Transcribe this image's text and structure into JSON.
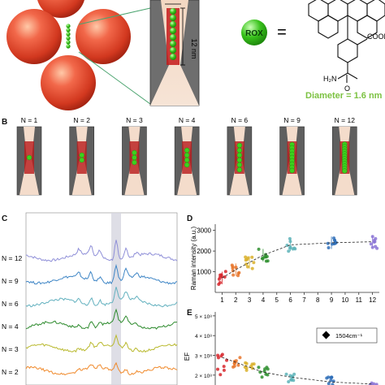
{
  "panel_a": {
    "gap_dim_label": "12 nm",
    "rox_label": "ROX",
    "equals": "=",
    "cooh_label": "COOH",
    "h2n_label": "H₂N",
    "carbonyl_o_label": "O",
    "diameter_label": "Diameter = 1.6 nm",
    "colors": {
      "sphere": "#e84a2a",
      "dye": "#39c21c",
      "diameter_text": "#7cc242"
    }
  },
  "panel_b": {
    "letter": "B",
    "items": [
      {
        "label": "N = 1",
        "n": 1
      },
      {
        "label": "N = 2",
        "n": 2
      },
      {
        "label": "N = 3",
        "n": 3
      },
      {
        "label": "N = 4",
        "n": 4
      },
      {
        "label": "N = 6",
        "n": 6
      },
      {
        "label": "N = 9",
        "n": 9
      },
      {
        "label": "N = 12",
        "n": 12
      }
    ]
  },
  "panel_c": {
    "letter": "C",
    "rows": [
      {
        "label": "N = 12",
        "color": "#8f8fd8"
      },
      {
        "label": "N = 9",
        "color": "#3f86c6"
      },
      {
        "label": "N = 6",
        "color": "#63b1bf"
      },
      {
        "label": "N = 4",
        "color": "#2e8b2e"
      },
      {
        "label": "N = 3",
        "color": "#b9b92e"
      },
      {
        "label": "N = 2",
        "color": "#f08a2c"
      }
    ]
  },
  "panel_d": {
    "letter": "D",
    "chart_data": {
      "type": "scatter",
      "ylabel": "Raman intensity (a.u.)",
      "x_ticks": [
        "1",
        "2",
        "3",
        "4",
        "5",
        "6",
        "7",
        "8",
        "9",
        "10",
        "11",
        "12"
      ],
      "y_ticks": [
        "1000",
        "2000",
        "3000"
      ],
      "ylim": [
        0,
        3300
      ],
      "xlim": [
        0.5,
        12.5
      ],
      "series": [
        {
          "x": 1,
          "mean": 700,
          "color": "#d7262b"
        },
        {
          "x": 2,
          "mean": 1100,
          "color": "#e8762c"
        },
        {
          "x": 3,
          "mean": 1450,
          "color": "#d9b02a"
        },
        {
          "x": 4,
          "mean": 1800,
          "color": "#2f8f2f"
        },
        {
          "x": 6,
          "mean": 2300,
          "color": "#5db3b8"
        },
        {
          "x": 9,
          "mean": 2400,
          "color": "#2f6fb8"
        },
        {
          "x": 12,
          "mean": 2450,
          "color": "#8c76d6"
        }
      ]
    }
  },
  "panel_e": {
    "letter": "E",
    "chart_data": {
      "type": "scatter",
      "ylabel": "EF",
      "y_ticks": [
        "2 × 10⁸",
        "3 × 10⁸",
        "4 × 10⁸",
        "5 × 10⁸"
      ],
      "legend": "1504cm⁻¹",
      "ylim": [
        1.5,
        5.2
      ],
      "series": [
        {
          "x": 1,
          "mean": 2.9,
          "color": "#d7262b"
        },
        {
          "x": 2,
          "mean": 2.65,
          "color": "#e8762c"
        },
        {
          "x": 3,
          "mean": 2.4,
          "color": "#d9b02a"
        },
        {
          "x": 4,
          "mean": 2.15,
          "color": "#2f8f2f"
        },
        {
          "x": 6,
          "mean": 1.9,
          "color": "#5db3b8"
        },
        {
          "x": 9,
          "mean": 1.65,
          "color": "#2f6fb8"
        },
        {
          "x": 12,
          "mean": 1.55,
          "color": "#8c76d6"
        }
      ]
    }
  }
}
